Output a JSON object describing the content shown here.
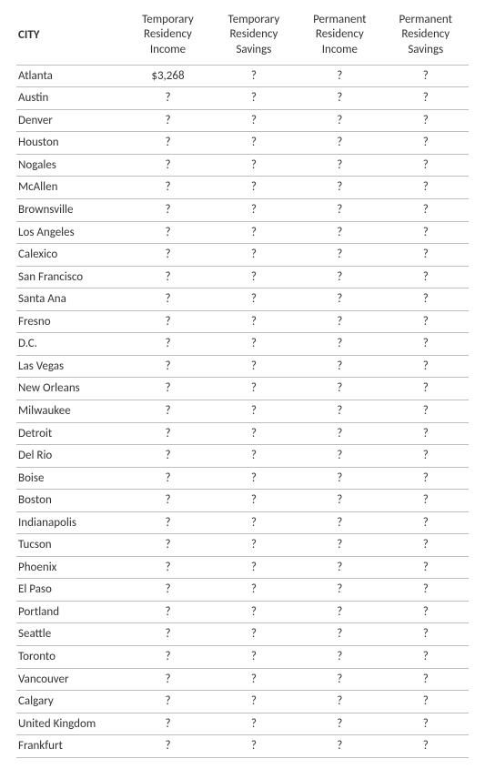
{
  "table": {
    "columns": [
      {
        "key": "city",
        "label_lines": [
          "CITY"
        ]
      },
      {
        "key": "temp_income",
        "label_lines": [
          "Temporary",
          "Residency",
          "Income"
        ]
      },
      {
        "key": "temp_savings",
        "label_lines": [
          "Temporary",
          "Residency",
          "Savings"
        ]
      },
      {
        "key": "perm_income",
        "label_lines": [
          "Permanent",
          "Residency",
          "Income"
        ]
      },
      {
        "key": "perm_savings",
        "label_lines": [
          "Permanent",
          "Residency",
          "Savings"
        ]
      }
    ],
    "rows": [
      {
        "city": "Atlanta",
        "temp_income": "$3,268",
        "temp_savings": "?",
        "perm_income": "?",
        "perm_savings": "?"
      },
      {
        "city": "Austin",
        "temp_income": "?",
        "temp_savings": "?",
        "perm_income": "?",
        "perm_savings": "?"
      },
      {
        "city": "Denver",
        "temp_income": "?",
        "temp_savings": "?",
        "perm_income": "?",
        "perm_savings": "?"
      },
      {
        "city": "Houston",
        "temp_income": "?",
        "temp_savings": "?",
        "perm_income": "?",
        "perm_savings": "?"
      },
      {
        "city": "Nogales",
        "temp_income": "?",
        "temp_savings": "?",
        "perm_income": "?",
        "perm_savings": "?"
      },
      {
        "city": "McAllen",
        "temp_income": "?",
        "temp_savings": "?",
        "perm_income": "?",
        "perm_savings": "?"
      },
      {
        "city": "Brownsville",
        "temp_income": "?",
        "temp_savings": "?",
        "perm_income": "?",
        "perm_savings": "?"
      },
      {
        "city": "Los Angeles",
        "temp_income": "?",
        "temp_savings": "?",
        "perm_income": "?",
        "perm_savings": "?"
      },
      {
        "city": "Calexico",
        "temp_income": "?",
        "temp_savings": "?",
        "perm_income": "?",
        "perm_savings": "?"
      },
      {
        "city": "San Francisco",
        "temp_income": "?",
        "temp_savings": "?",
        "perm_income": "?",
        "perm_savings": "?"
      },
      {
        "city": "Santa Ana",
        "temp_income": "?",
        "temp_savings": "?",
        "perm_income": "?",
        "perm_savings": "?"
      },
      {
        "city": "Fresno",
        "temp_income": "?",
        "temp_savings": "?",
        "perm_income": "?",
        "perm_savings": "?"
      },
      {
        "city": "D.C.",
        "temp_income": "?",
        "temp_savings": "?",
        "perm_income": "?",
        "perm_savings": "?"
      },
      {
        "city": "Las Vegas",
        "temp_income": "?",
        "temp_savings": "?",
        "perm_income": "?",
        "perm_savings": "?"
      },
      {
        "city": "New Orleans",
        "temp_income": "?",
        "temp_savings": "?",
        "perm_income": "?",
        "perm_savings": "?"
      },
      {
        "city": "Milwaukee",
        "temp_income": "?",
        "temp_savings": "?",
        "perm_income": "?",
        "perm_savings": "?"
      },
      {
        "city": "Detroit",
        "temp_income": "?",
        "temp_savings": "?",
        "perm_income": "?",
        "perm_savings": "?"
      },
      {
        "city": "Del Rio",
        "temp_income": "?",
        "temp_savings": "?",
        "perm_income": "?",
        "perm_savings": "?"
      },
      {
        "city": "Boise",
        "temp_income": "?",
        "temp_savings": "?",
        "perm_income": "?",
        "perm_savings": "?"
      },
      {
        "city": "Boston",
        "temp_income": "?",
        "temp_savings": "?",
        "perm_income": "?",
        "perm_savings": "?"
      },
      {
        "city": "Indianapolis",
        "temp_income": "?",
        "temp_savings": "?",
        "perm_income": "?",
        "perm_savings": "?"
      },
      {
        "city": "Tucson",
        "temp_income": "?",
        "temp_savings": "?",
        "perm_income": "?",
        "perm_savings": "?"
      },
      {
        "city": "Phoenix",
        "temp_income": "?",
        "temp_savings": "?",
        "perm_income": "?",
        "perm_savings": "?"
      },
      {
        "city": "El Paso",
        "temp_income": "?",
        "temp_savings": "?",
        "perm_income": "?",
        "perm_savings": "?"
      },
      {
        "city": "Portland",
        "temp_income": "?",
        "temp_savings": "?",
        "perm_income": "?",
        "perm_savings": "?"
      },
      {
        "city": "Seattle",
        "temp_income": "?",
        "temp_savings": "?",
        "perm_income": "?",
        "perm_savings": "?"
      },
      {
        "city": "Toronto",
        "temp_income": "?",
        "temp_savings": "?",
        "perm_income": "?",
        "perm_savings": "?"
      },
      {
        "city": "Vancouver",
        "temp_income": "?",
        "temp_savings": "?",
        "perm_income": "?",
        "perm_savings": "?"
      },
      {
        "city": "Calgary",
        "temp_income": "?",
        "temp_savings": "?",
        "perm_income": "?",
        "perm_savings": "?"
      },
      {
        "city": "United Kingdom",
        "temp_income": "?",
        "temp_savings": "?",
        "perm_income": "?",
        "perm_savings": "?"
      },
      {
        "city": "Frankfurt",
        "temp_income": "?",
        "temp_savings": "?",
        "perm_income": "?",
        "perm_savings": "?"
      }
    ],
    "style": {
      "border_color": "#bdbdbd",
      "text_color": "#333333",
      "font_family": "Calibri",
      "header_fontsize_pt": 10,
      "body_fontsize_pt": 10
    }
  }
}
